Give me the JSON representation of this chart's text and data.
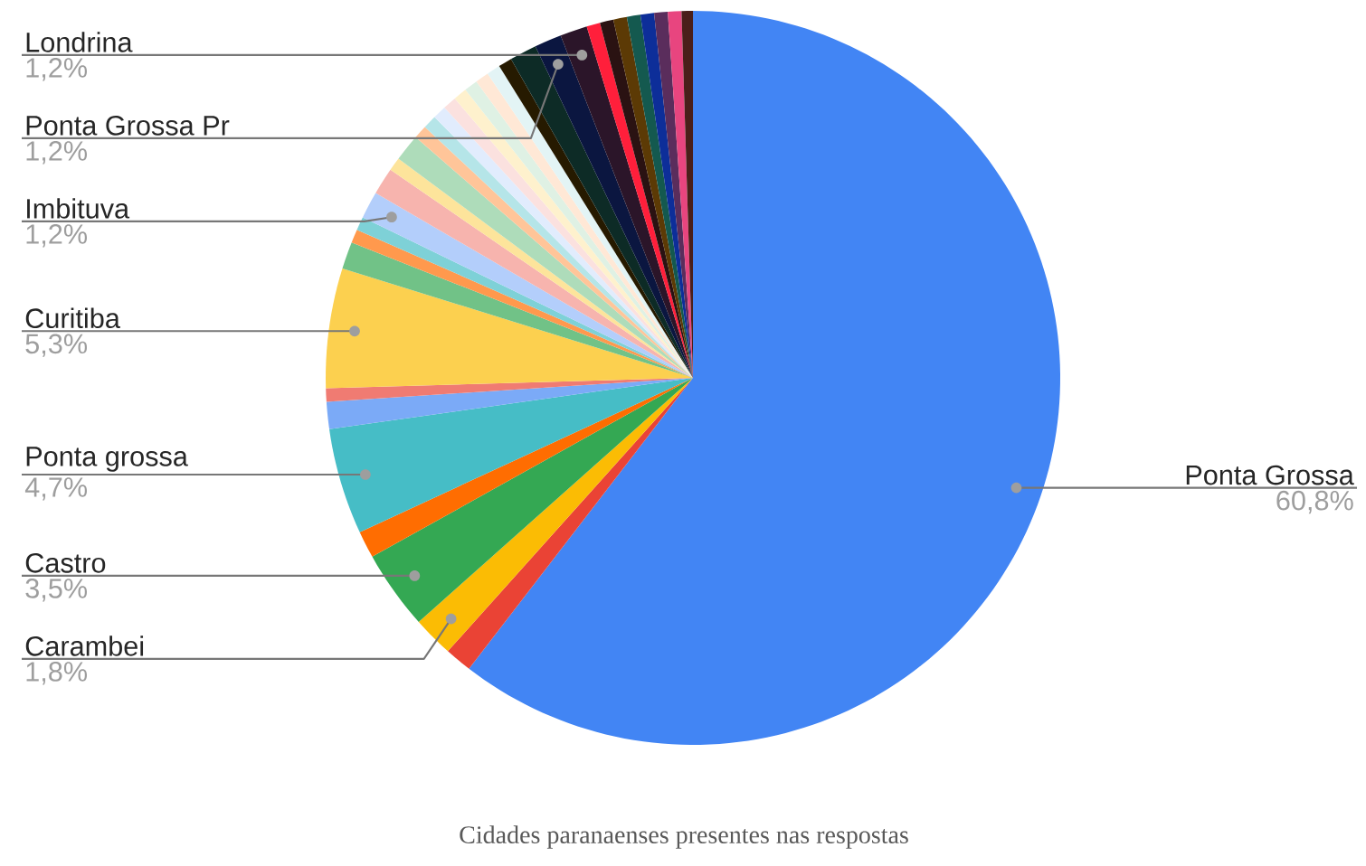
{
  "chart_data": {
    "type": "pie",
    "title": "Cidades paranaenses presentes nas respostas",
    "categories": [
      "Ponta Grossa",
      null,
      "Carambei",
      "Castro",
      null,
      "Ponta grossa",
      null,
      null,
      "Curitiba",
      null,
      null,
      null,
      "Imbituva",
      null,
      null,
      null,
      null,
      null,
      null,
      null,
      null,
      null,
      null,
      null,
      null,
      null,
      "Ponta Grossa Pr",
      "Londrina",
      null,
      null,
      null,
      null,
      null,
      null,
      null,
      null
    ],
    "values": [
      60.8,
      1.2,
      1.8,
      3.5,
      1.2,
      4.7,
      1.2,
      0.6,
      5.3,
      1.2,
      0.6,
      0.6,
      1.2,
      1.2,
      0.6,
      1.2,
      0.6,
      0.6,
      0.6,
      0.6,
      0.6,
      0.6,
      0.6,
      0.6,
      0.6,
      1.2,
      1.2,
      1.2,
      0.6,
      0.6,
      0.6,
      0.6,
      0.6,
      0.6,
      0.6,
      0.5
    ],
    "value_labels": [
      "60,8%",
      null,
      "1,8%",
      "3,5%",
      null,
      "4,7%",
      null,
      null,
      "5,3%",
      null,
      null,
      null,
      "1,2%",
      null,
      null,
      null,
      null,
      null,
      null,
      null,
      null,
      null,
      null,
      null,
      null,
      null,
      "1,2%",
      "1,2%",
      null,
      null,
      null,
      null,
      null,
      null,
      null,
      null
    ],
    "colors": [
      "#4285f4",
      "#ea4335",
      "#fbbc04",
      "#34a853",
      "#ff6d01",
      "#46bdc6",
      "#7baaf7",
      "#f07b72",
      "#fcd04f",
      "#71c287",
      "#ff994d",
      "#7ed1d7",
      "#b3cefb",
      "#f7b4ae",
      "#fde49b",
      "#aedcba",
      "#ffc599",
      "#b5e5e8",
      "#e1ecfd",
      "#fbe1df",
      "#fef1cd",
      "#dff1e4",
      "#ffe8d6",
      "#e3f4f5",
      "#261a00",
      "#0d2b26",
      "#0b1640",
      "#2b1529",
      "#ff1f3b",
      "#2a1212",
      "#5c3a05",
      "#14594f",
      "#0d2e99",
      "#5a2d5c",
      "#e8457f",
      "#4a1f1a"
    ]
  }
}
